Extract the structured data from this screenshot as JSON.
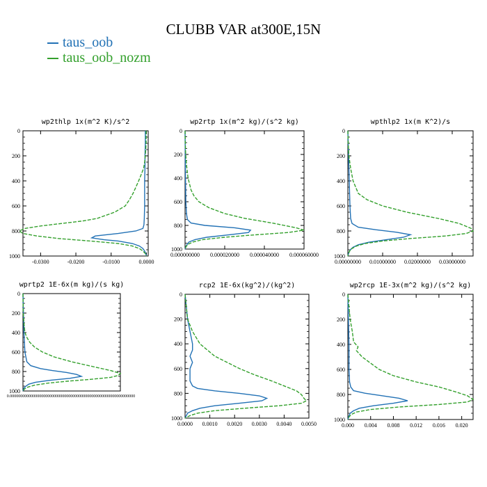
{
  "title": "CLUBB VAR at300E,15N",
  "legend": [
    {
      "label": "taus_oob",
      "color": "#2171b5"
    },
    {
      "label": "taus_oob_nozm",
      "color": "#33a02c"
    }
  ],
  "chart_data": [
    {
      "type": "line",
      "title": "wp2thlp  1x(m^2 K)/s^2",
      "ylim": [
        1000,
        0
      ],
      "yticks": [
        0,
        200,
        400,
        600,
        800,
        1000
      ],
      "xlim": [
        -0.035,
        0.0005
      ],
      "xticks": [
        -0.03,
        -0.02,
        -0.01,
        0.0
      ],
      "xtick_labels": [
        "-0.0300",
        "-0.0200",
        "-0.0100",
        "0.0000"
      ],
      "series": [
        {
          "name": "taus_oob",
          "y": [
            0,
            100,
            200,
            300,
            400,
            500,
            600,
            700,
            750,
            780,
            800,
            820,
            840,
            855,
            870,
            880,
            900,
            920,
            940,
            960,
            980,
            1000
          ],
          "x": [
            -0.0003,
            -0.0003,
            -0.0004,
            -0.0004,
            -0.0005,
            -0.0005,
            -0.0005,
            -0.0006,
            -0.0007,
            -0.001,
            -0.003,
            -0.008,
            -0.0145,
            -0.0155,
            -0.012,
            -0.008,
            -0.004,
            -0.002,
            -0.001,
            -0.0005,
            -0.0002,
            0.0
          ]
        },
        {
          "name": "taus_oob_nozm",
          "y": [
            0,
            100,
            200,
            250,
            300,
            350,
            400,
            450,
            500,
            550,
            600,
            650,
            700,
            720,
            740,
            760,
            780,
            800,
            820,
            840,
            860,
            880,
            900,
            920,
            940,
            960,
            980,
            1000
          ],
          "x": [
            -0.0001,
            -0.0001,
            -0.0003,
            -0.0005,
            -0.0008,
            -0.0015,
            -0.0022,
            -0.003,
            -0.0038,
            -0.0048,
            -0.006,
            -0.009,
            -0.014,
            -0.018,
            -0.024,
            -0.03,
            -0.0345,
            -0.036,
            -0.035,
            -0.031,
            -0.025,
            -0.016,
            -0.008,
            -0.004,
            -0.002,
            -0.001,
            -0.0003,
            0.0
          ]
        }
      ]
    },
    {
      "type": "line",
      "title": "wp2rtp  1x(m^2 kg)/(s^2 kg)",
      "ylim": [
        1000,
        0
      ],
      "yticks": [
        0,
        200,
        400,
        600,
        800,
        1000
      ],
      "xlim": [
        0.0,
        6e-05
      ],
      "xticks": [
        0.0,
        2e-05,
        4e-05,
        6e-05
      ],
      "xtick_labels": [
        "0.000000000",
        "0.000020000",
        "0.000040000",
        "0.000060000"
      ],
      "series": [
        {
          "name": "taus_oob",
          "y": [
            0,
            200,
            400,
            600,
            700,
            750,
            780,
            800,
            820,
            840,
            860,
            880,
            900,
            920,
            940,
            960,
            980,
            1000
          ],
          "x": [
            0.0,
            1e-07,
            2e-07,
            4e-07,
            7e-07,
            1.2e-06,
            3e-06,
            1e-05,
            2.5e-05,
            3.3e-05,
            3.2e-05,
            2.2e-05,
            1.1e-05,
            5e-06,
            2e-06,
            1e-06,
            4e-07,
            0.0
          ]
        },
        {
          "name": "taus_oob_nozm",
          "y": [
            0,
            100,
            200,
            300,
            400,
            500,
            550,
            600,
            650,
            700,
            740,
            780,
            800,
            820,
            840,
            860,
            880,
            900,
            920,
            940,
            960,
            980,
            1000
          ],
          "x": [
            0.0,
            1e-07,
            3e-07,
            8e-07,
            1.5e-06,
            3e-06,
            4.5e-06,
            7e-06,
            1.2e-05,
            2e-05,
            3e-05,
            4.4e-05,
            5e-05,
            5.6e-05,
            6e-05,
            5.2e-05,
            3.5e-05,
            2e-05,
            9e-06,
            4e-06,
            1.5e-06,
            5e-07,
            0.0
          ]
        }
      ]
    },
    {
      "type": "line",
      "title": "wpthlp2  1x(m K^2)/s",
      "ylim": [
        1000,
        0
      ],
      "yticks": [
        0,
        200,
        400,
        600,
        800,
        1000
      ],
      "xlim": [
        0.0,
        0.036
      ],
      "xticks": [
        0.0,
        0.01,
        0.02,
        0.03
      ],
      "xtick_labels": [
        "0.00000000",
        "0.01000000",
        "0.02000000",
        "0.03000000"
      ],
      "series": [
        {
          "name": "taus_oob",
          "y": [
            0,
            200,
            400,
            600,
            700,
            740,
            770,
            790,
            810,
            830,
            850,
            870,
            890,
            910,
            930,
            950,
            970,
            1000
          ],
          "x": [
            0.0,
            0.0002,
            0.0004,
            0.0006,
            0.0008,
            0.0012,
            0.003,
            0.008,
            0.014,
            0.018,
            0.016,
            0.011,
            0.006,
            0.003,
            0.0015,
            0.0007,
            0.0003,
            0.0
          ]
        },
        {
          "name": "taus_oob_nozm",
          "y": [
            0,
            100,
            200,
            300,
            400,
            500,
            550,
            600,
            650,
            700,
            740,
            780,
            800,
            820,
            840,
            860,
            880,
            900,
            920,
            940,
            960,
            980,
            1000
          ],
          "x": [
            0.0,
            0.0001,
            0.0003,
            0.0008,
            0.0015,
            0.003,
            0.0055,
            0.01,
            0.017,
            0.026,
            0.032,
            0.0355,
            0.036,
            0.034,
            0.028,
            0.018,
            0.01,
            0.005,
            0.0025,
            0.0012,
            0.0005,
            0.0002,
            0.0
          ]
        }
      ]
    },
    {
      "type": "line",
      "title": "wprtp2  1E-6x(m kg)/(s kg)",
      "ylim": [
        1000,
        0
      ],
      "yticks": [
        0,
        200,
        400,
        600,
        800,
        1000
      ],
      "xlim": [
        0.0,
        0.0001
      ],
      "xticks": [],
      "xtick_labels": [],
      "xtick_label_text": "0.000000000000000000000000000000000000000000000000000000000000",
      "series": [
        {
          "name": "taus_oob",
          "y": [
            0,
            200,
            400,
            600,
            700,
            740,
            770,
            790,
            810,
            830,
            850,
            870,
            890,
            910,
            930,
            950,
            970,
            1000
          ],
          "x": [
            0.0,
            5e-07,
            1e-06,
            2e-06,
            4e-06,
            8e-06,
            1.8e-05,
            3e-05,
            4.5e-05,
            5.5e-05,
            6e-05,
            4.8e-05,
            2.8e-05,
            1.3e-05,
            6e-06,
            3e-06,
            1e-06,
            0.0
          ]
        },
        {
          "name": "taus_oob_nozm",
          "y": [
            0,
            200,
            300,
            400,
            450,
            500,
            550,
            600,
            650,
            700,
            750,
            790,
            820,
            840,
            860,
            880,
            900,
            920,
            940,
            960,
            980,
            1000
          ],
          "x": [
            0.0,
            3e-07,
            1e-06,
            2e-06,
            4e-06,
            7e-06,
            1.2e-05,
            2e-05,
            3.2e-05,
            5e-05,
            7.2e-05,
            9e-05,
            0.0001,
            9.8e-05,
            9e-05,
            7e-05,
            4.5e-05,
            2.5e-05,
            1.2e-05,
            5e-06,
            1.5e-06,
            0.0
          ]
        }
      ]
    },
    {
      "type": "line",
      "title": "rcp2  1E-6x(kg^2)/(kg^2)",
      "ylim": [
        1000,
        0
      ],
      "yticks": [
        0,
        200,
        400,
        600,
        800,
        1000
      ],
      "xlim": [
        0.0,
        0.005
      ],
      "xticks": [
        0.0,
        0.001,
        0.002,
        0.003,
        0.004,
        0.005
      ],
      "xtick_labels": [
        "0.0000",
        "0.0010",
        "0.0020",
        "0.0030",
        "0.0040",
        "0.0050"
      ],
      "series": [
        {
          "name": "taus_oob",
          "y": [
            0,
            200,
            300,
            400,
            450,
            500,
            550,
            600,
            650,
            700,
            740,
            760,
            780,
            800,
            820,
            840,
            860,
            880,
            900,
            920,
            940,
            960,
            980,
            1000
          ],
          "x": [
            0.0,
            0.0001,
            0.0002,
            0.0003,
            0.0003,
            0.0002,
            0.0003,
            0.0002,
            0.0002,
            0.0002,
            0.0003,
            0.0005,
            0.0012,
            0.0022,
            0.003,
            0.0033,
            0.0031,
            0.0022,
            0.0012,
            0.0006,
            0.0003,
            0.0001,
            5e-05,
            0.0
          ]
        },
        {
          "name": "taus_oob_nozm",
          "y": [
            0,
            100,
            200,
            300,
            400,
            450,
            500,
            550,
            600,
            650,
            700,
            740,
            780,
            810,
            840,
            860,
            880,
            900,
            920,
            940,
            960,
            980,
            1000
          ],
          "x": [
            0.0,
            5e-05,
            0.0001,
            0.0003,
            0.0006,
            0.0009,
            0.0012,
            0.0017,
            0.0022,
            0.0028,
            0.0035,
            0.004,
            0.0045,
            0.0047,
            0.0048,
            0.0049,
            0.0047,
            0.0038,
            0.0024,
            0.0012,
            0.0005,
            0.0002,
            0.0
          ]
        }
      ]
    },
    {
      "type": "line",
      "title": "wp2rcp  1E-3x(m^2 kg)/(s^2 kg)",
      "ylim": [
        1000,
        0
      ],
      "yticks": [
        0,
        200,
        400,
        600,
        800,
        1000
      ],
      "xlim": [
        0.0,
        0.022
      ],
      "xticks": [
        0.0,
        0.004,
        0.008,
        0.012,
        0.016,
        0.02
      ],
      "xtick_labels": [
        "0.000",
        "0.004",
        "0.008",
        "0.012",
        "0.016",
        "0.020"
      ],
      "series": [
        {
          "name": "taus_oob",
          "y": [
            0,
            200,
            400,
            600,
            700,
            740,
            770,
            790,
            810,
            830,
            850,
            870,
            890,
            910,
            930,
            950,
            970,
            1000
          ],
          "x": [
            0.0,
            0.0001,
            0.0002,
            0.0002,
            0.0003,
            0.0005,
            0.001,
            0.003,
            0.006,
            0.009,
            0.0105,
            0.008,
            0.0045,
            0.002,
            0.001,
            0.0004,
            0.0002,
            0.0
          ]
        },
        {
          "name": "taus_oob_nozm",
          "y": [
            0,
            100,
            200,
            300,
            380,
            420,
            450,
            500,
            550,
            600,
            650,
            700,
            740,
            780,
            810,
            840,
            860,
            880,
            900,
            920,
            940,
            960,
            980,
            1000
          ],
          "x": [
            0.0,
            0.0002,
            0.0004,
            0.0008,
            0.001,
            0.0018,
            0.0015,
            0.0025,
            0.004,
            0.0055,
            0.008,
            0.012,
            0.016,
            0.019,
            0.021,
            0.022,
            0.021,
            0.016,
            0.009,
            0.004,
            0.0015,
            0.0006,
            0.0002,
            0.0
          ]
        }
      ]
    }
  ]
}
